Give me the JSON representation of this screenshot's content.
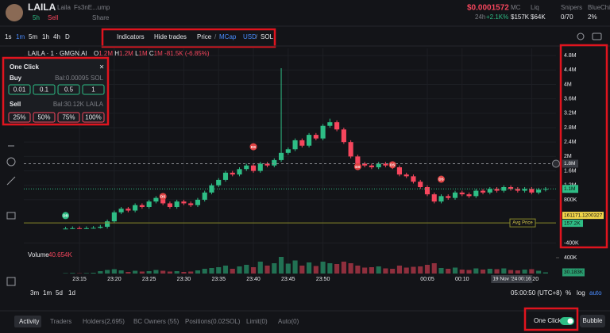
{
  "header": {
    "symbol": "LAILA",
    "name": "Laila",
    "address": "Fs3nE...ump",
    "age": "5h",
    "flag": "Sell",
    "share": "Share",
    "price": "$0.0001572",
    "change_label": "24h",
    "change": "+2.1K%",
    "stats": [
      {
        "label": "MC",
        "value": "$157K"
      },
      {
        "label": "Liq",
        "value": "$64K"
      },
      {
        "label": "Snipers",
        "value": "0/70"
      },
      {
        "label": "BlueChip",
        "value": "2%"
      }
    ]
  },
  "toolbar": {
    "intervals": [
      "1s",
      "1m",
      "5m",
      "1h",
      "4h",
      "D"
    ],
    "indicators": "Indicators",
    "hide_trades": "Hide trades",
    "price": "Price",
    "mcap": "MCap",
    "usd": "USD",
    "sol": "SOL"
  },
  "legend": {
    "symbol": "LAILA · 1 · GMGN.AI",
    "items": [
      {
        "key": "O",
        "value": "1.2M"
      },
      {
        "key": "H",
        "value": "1.2M"
      },
      {
        "key": "L",
        "value": "1M"
      },
      {
        "key": "C",
        "value": "1M"
      }
    ],
    "change": "-81.5K (-6.85%)"
  },
  "one_click": {
    "title": "One Click",
    "buy": "Buy",
    "buy_balance": "Bal:0.00095 SOL",
    "buy_amounts": [
      "0.01",
      "0.1",
      "0.5",
      "1"
    ],
    "sell": "Sell",
    "sell_balance": "Bal:30.12K LAILA",
    "sell_amounts": [
      "25%",
      "50%",
      "75%",
      "100%"
    ]
  },
  "chart_data": {
    "type": "candlestick",
    "xlim": [
      -6,
      70.5
    ],
    "xticks": [
      {
        "value": 2,
        "label": "23:15"
      },
      {
        "value": 7,
        "label": "23:20"
      },
      {
        "value": 12,
        "label": "23:25"
      },
      {
        "value": 17,
        "label": "23:30"
      },
      {
        "value": 22,
        "label": "23:35"
      },
      {
        "value": 27,
        "label": "23:40"
      },
      {
        "value": 32,
        "label": "23:45"
      },
      {
        "value": 37,
        "label": "23:50"
      },
      {
        "value": 52,
        "label": "00:05"
      },
      {
        "value": 57,
        "label": "00:10"
      },
      {
        "value": 67,
        "label": "00:20"
      }
    ],
    "ylim": [
      -0.5,
      5.0
    ],
    "yticks": [
      {
        "value": 4.8,
        "label": "4.8M"
      },
      {
        "value": 4.4,
        "label": "4.4M"
      },
      {
        "value": 4,
        "label": "4M"
      },
      {
        "value": 3.6,
        "label": "3.6M"
      },
      {
        "value": 3.2,
        "label": "3.2M"
      },
      {
        "value": 2.8,
        "label": "2.8M"
      },
      {
        "value": 2.4,
        "label": "2.4M"
      },
      {
        "value": 2,
        "label": "2M"
      },
      {
        "value": 1.6,
        "label": "1.6M"
      },
      {
        "value": 1.2,
        "label": "1.2M"
      },
      {
        "value": 0.8,
        "label": "800K"
      },
      {
        "value": -0.4,
        "label": "-400K"
      }
    ],
    "up_color": "#2ebd85",
    "down_color": "#f6465d",
    "grid": true,
    "open": [
      0,
      0,
      0.01,
      0,
      0.01,
      0.02,
      0.05,
      0.2,
      0.45,
      0.55,
      0.5,
      0.65,
      0.6,
      0.75,
      0.85,
      0.7,
      0.6,
      0.75,
      0.7,
      0.65,
      0.8,
      1,
      1.2,
      1.35,
      1.55,
      1.5,
      1.65,
      1.75,
      1.6,
      1.8,
      1.75,
      1.9,
      2.1,
      2.2,
      2.45,
      2.3,
      2.6,
      2.5,
      2.85,
      2.95,
      2.75,
      2.4,
      2,
      1.8,
      1.75,
      1.7,
      1.8,
      1.75,
      1.7,
      1.5,
      1.45,
      1.3,
      1.15,
      0.95,
      0.75,
      0.9,
      0.85,
      1,
      0.95,
      0.9,
      1.05,
      1,
      1.1,
      1.05,
      1.15,
      1.1,
      1.05,
      1.1,
      1,
      1.08
    ],
    "high": [
      0.05,
      0.06,
      0.06,
      0.06,
      0.07,
      0.1,
      0.25,
      0.5,
      0.6,
      0.6,
      0.7,
      0.7,
      0.8,
      0.9,
      0.9,
      0.75,
      0.8,
      0.8,
      0.75,
      0.85,
      1.05,
      1.25,
      1.4,
      1.6,
      1.6,
      1.7,
      1.8,
      1.8,
      1.85,
      1.85,
      1.95,
      4.45,
      2.25,
      2.5,
      2.5,
      2.65,
      2.65,
      2.9,
      3.05,
      3,
      2.8,
      2.45,
      2.05,
      1.85,
      1.8,
      1.85,
      1.85,
      1.8,
      1.75,
      1.55,
      1.5,
      1.35,
      1.2,
      1,
      0.95,
      0.95,
      1.05,
      1.05,
      1,
      1.1,
      1.1,
      1.15,
      1.15,
      1.2,
      1.2,
      1.15,
      1.15,
      1.15,
      1.13,
      1.15
    ],
    "low": [
      0,
      0,
      0,
      0,
      0,
      0,
      0,
      0.15,
      0.4,
      0.45,
      0.45,
      0.55,
      0.55,
      0.7,
      0.65,
      0.55,
      0.55,
      0.65,
      0.6,
      0.6,
      0.75,
      0.95,
      1.15,
      1.3,
      1.45,
      1.45,
      1.6,
      1.55,
      1.55,
      1.7,
      1.7,
      1.85,
      2.05,
      2.15,
      2.25,
      2.25,
      2.45,
      2.45,
      2.8,
      2.7,
      2.35,
      1.95,
      1.75,
      1.7,
      1.65,
      1.65,
      1.7,
      1.65,
      1.45,
      1.4,
      1.25,
      1.1,
      0.9,
      0.7,
      0.7,
      0.8,
      0.8,
      0.9,
      0.85,
      0.85,
      0.95,
      0.95,
      1,
      1,
      1.05,
      1,
      1,
      0.95,
      0.95,
      1.03
    ],
    "close": [
      0,
      0.01,
      0,
      0.01,
      0.02,
      0.05,
      0.2,
      0.45,
      0.55,
      0.5,
      0.65,
      0.6,
      0.75,
      0.85,
      0.7,
      0.6,
      0.75,
      0.7,
      0.65,
      0.8,
      1,
      1.2,
      1.35,
      1.55,
      1.5,
      1.65,
      1.75,
      1.6,
      1.8,
      1.75,
      1.9,
      2.1,
      2.2,
      2.45,
      2.3,
      2.6,
      2.5,
      2.85,
      2.95,
      2.75,
      2.4,
      2,
      1.8,
      1.75,
      1.7,
      1.8,
      1.75,
      1.7,
      1.5,
      1.45,
      1.3,
      1.15,
      0.95,
      0.75,
      0.9,
      0.85,
      1,
      0.95,
      0.9,
      1.05,
      1,
      1.1,
      1.05,
      1.15,
      1.1,
      1.05,
      1.1,
      1,
      1.08,
      1.1
    ],
    "volume_label": "Volume",
    "volume_value": "40.654K",
    "vlim": [
      0,
      540
    ],
    "vticks": [
      {
        "value": 400,
        "label": "400K"
      }
    ],
    "volume": [
      10,
      15,
      8,
      12,
      20,
      60,
      90,
      110,
      80,
      40,
      70,
      50,
      60,
      90,
      70,
      50,
      60,
      40,
      50,
      80,
      120,
      140,
      160,
      200,
      120,
      180,
      220,
      160,
      300,
      200,
      260,
      420,
      250,
      330,
      200,
      280,
      190,
      300,
      260,
      240,
      300,
      260,
      200,
      150,
      160,
      180,
      130,
      120,
      200,
      150,
      170,
      180,
      220,
      260,
      140,
      120,
      150,
      100,
      90,
      130,
      100,
      120,
      110,
      130,
      90,
      80,
      100,
      110,
      70,
      30
    ],
    "markers": [
      {
        "label": "DB",
        "x": 0,
        "value": 0.36
      },
      {
        "label": "DS",
        "x": 14,
        "value": 0.89
      },
      {
        "label": "DS",
        "x": 27,
        "value": 2.27
      },
      {
        "label": "DS",
        "x": 42,
        "value": 1.72
      },
      {
        "label": "DS",
        "x": 47,
        "value": 1.77
      },
      {
        "label": "DS",
        "x": 54,
        "value": 1.37
      }
    ],
    "crosshair": {
      "x": 63,
      "date": "19 Nov '24",
      "time": "00:16",
      "value": 1.8,
      "label": "1.8M"
    },
    "last_price": {
      "value": 1.1,
      "label": "1.1M"
    },
    "avg_price": {
      "name": "Avg Price",
      "value": 0.1572,
      "label": "157.2K",
      "extra": "161171.1200327"
    },
    "last_volume": {
      "value": 30.183,
      "label": "30.183K"
    }
  },
  "range_bar": {
    "ranges": [
      "3m",
      "1m",
      "5d",
      "1d"
    ],
    "clock": "05:00:50 (UTC+8)",
    "percent": "%",
    "log": "log",
    "auto": "auto"
  },
  "tabs": [
    "Activity",
    "Traders",
    "Holders(2,695)",
    "BC Owners (55)",
    "Positions(0.02SOL)",
    "Limit(0)",
    "Auto(0)"
  ],
  "footer": {
    "one_click": "One Click",
    "bubble": "Bubble"
  }
}
